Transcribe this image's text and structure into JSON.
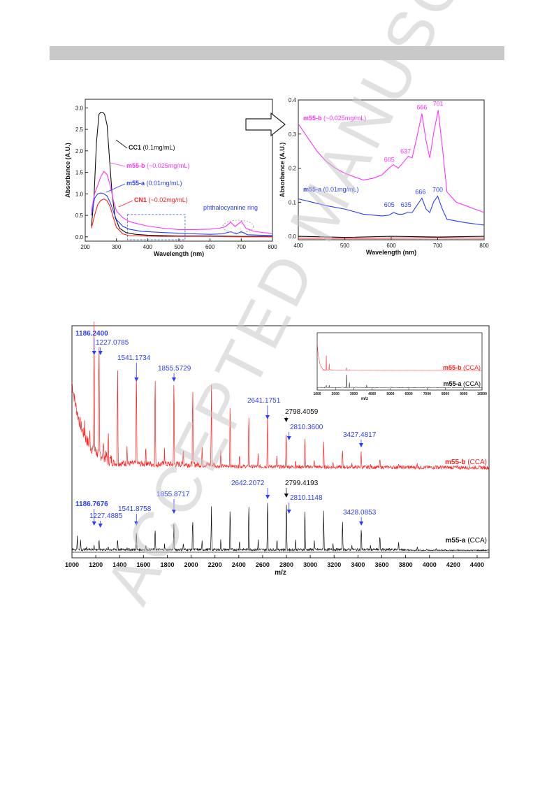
{
  "watermark": {
    "text": "ACCEPTED MANUSCRIPT",
    "color": "#c8c8c8"
  },
  "colors": {
    "magenta": "#ff33ff",
    "blue": "#2b3cff",
    "black": "#111111",
    "red": "#ff2020"
  },
  "chart_data": [
    {
      "type": "line",
      "xlabel": "Wavelength (nm)",
      "ylabel": "Absorbance (A.U.)",
      "xlim": [
        200,
        800
      ],
      "ylim": [
        -0.1,
        3.2
      ],
      "xticks": [
        200,
        300,
        400,
        500,
        600,
        700,
        800
      ],
      "yticks": [
        0.0,
        0.5,
        1.0,
        1.5,
        2.0,
        2.5,
        3.0
      ],
      "series": [
        {
          "name": "CC1",
          "note": "(0.1mg/mL)",
          "color": "#111111",
          "x": [
            220,
            228,
            236,
            244,
            250,
            256,
            262,
            270,
            278,
            286,
            296,
            310,
            330,
            360,
            400,
            500,
            600,
            700,
            800
          ],
          "y": [
            0.25,
            0.9,
            2.2,
            2.85,
            2.9,
            2.9,
            2.85,
            2.6,
            1.8,
            1.0,
            0.45,
            0.2,
            0.1,
            0.06,
            0.04,
            0.02,
            0.02,
            0.01,
            0.01
          ]
        },
        {
          "name": "m55-b",
          "note": "(~0.025mg/mL)",
          "color": "#ff33ff",
          "x": [
            220,
            230,
            240,
            250,
            260,
            270,
            280,
            290,
            300,
            320,
            340,
            360,
            400,
            450,
            500,
            550,
            600,
            630,
            650,
            666,
            680,
            701,
            715,
            740,
            770,
            800
          ],
          "y": [
            0.6,
            1.0,
            1.2,
            1.4,
            1.52,
            1.45,
            1.2,
            0.85,
            0.6,
            0.45,
            0.36,
            0.32,
            0.25,
            0.2,
            0.17,
            0.17,
            0.18,
            0.2,
            0.24,
            0.34,
            0.24,
            0.36,
            0.2,
            0.13,
            0.1,
            0.08
          ]
        },
        {
          "name": "m55-a",
          "note": "(0.01mg/mL)",
          "color": "#2b3cff",
          "x": [
            220,
            230,
            240,
            250,
            260,
            270,
            280,
            290,
            300,
            320,
            340,
            380,
            450,
            550,
            600,
            640,
            666,
            685,
            700,
            720,
            760,
            800
          ],
          "y": [
            0.5,
            0.9,
            1.0,
            1.02,
            1.0,
            0.95,
            0.8,
            0.6,
            0.4,
            0.25,
            0.18,
            0.13,
            0.1,
            0.07,
            0.06,
            0.07,
            0.12,
            0.07,
            0.12,
            0.05,
            0.04,
            0.03
          ]
        },
        {
          "name": "CN1",
          "note": "(~0.02mg/mL)",
          "color": "#ff2020",
          "x": [
            220,
            230,
            240,
            250,
            260,
            270,
            280,
            290,
            300,
            320,
            340,
            380,
            450,
            600,
            700,
            800
          ],
          "y": [
            0.2,
            0.5,
            0.75,
            0.85,
            0.88,
            0.84,
            0.7,
            0.45,
            0.22,
            0.07,
            0.03,
            0.02,
            0.01,
            0.01,
            0.0,
            0.0
          ]
        }
      ],
      "annotations": [
        {
          "text": "phthalocyanine ring"
        }
      ]
    },
    {
      "type": "line",
      "xlabel": "Wavelength (nm)",
      "ylabel": "Absorbance (A.U.)",
      "xlim": [
        400,
        800
      ],
      "ylim": [
        -0.01,
        0.4
      ],
      "xticks": [
        400,
        500,
        600,
        700,
        800
      ],
      "yticks": [
        0.0,
        0.1,
        0.2,
        0.3,
        0.4
      ],
      "series": [
        {
          "name": "m55-b",
          "note": "(~0.025mg/mL)",
          "color": "#ff33ff",
          "x": [
            400,
            420,
            440,
            460,
            480,
            500,
            520,
            540,
            560,
            580,
            595,
            605,
            615,
            625,
            637,
            645,
            655,
            666,
            675,
            683,
            691,
            701,
            711,
            720,
            740,
            760,
            780,
            800
          ],
          "y": [
            0.33,
            0.29,
            0.25,
            0.22,
            0.2,
            0.185,
            0.175,
            0.165,
            0.17,
            0.18,
            0.2,
            0.21,
            0.2,
            0.215,
            0.235,
            0.23,
            0.29,
            0.36,
            0.28,
            0.23,
            0.3,
            0.37,
            0.25,
            0.13,
            0.1,
            0.09,
            0.08,
            0.07
          ]
        },
        {
          "name": "m55-a",
          "note": "(0.01mg/mL)",
          "color": "#2b3cff",
          "x": [
            400,
            430,
            460,
            500,
            540,
            580,
            595,
            605,
            615,
            625,
            635,
            645,
            655,
            666,
            675,
            683,
            691,
            700,
            710,
            720,
            760,
            800
          ],
          "y": [
            0.11,
            0.1,
            0.09,
            0.08,
            0.065,
            0.06,
            0.062,
            0.07,
            0.065,
            0.065,
            0.07,
            0.07,
            0.09,
            0.112,
            0.08,
            0.07,
            0.1,
            0.118,
            0.08,
            0.05,
            0.04,
            0.033
          ]
        },
        {
          "name": "",
          "color": "#111111",
          "x": [
            400,
            500,
            600,
            700,
            800
          ],
          "y": [
            0.0,
            -0.003,
            0.0,
            -0.002,
            0.0
          ]
        },
        {
          "name": "",
          "color": "#ff2020",
          "x": [
            400,
            500,
            600,
            700,
            800
          ],
          "y": [
            -0.005,
            -0.006,
            -0.005,
            -0.004,
            -0.005
          ]
        }
      ],
      "peaks_b": [
        {
          "x": 605,
          "y": 0.21,
          "text": "605"
        },
        {
          "x": 637,
          "y": 0.235,
          "text": "637"
        },
        {
          "x": 666,
          "y": 0.36,
          "text": "666"
        },
        {
          "x": 701,
          "y": 0.37,
          "text": "701"
        }
      ],
      "peaks_a": [
        {
          "x": 605,
          "y": 0.07,
          "text": "605"
        },
        {
          "x": 635,
          "y": 0.07,
          "text": "635"
        },
        {
          "x": 666,
          "y": 0.112,
          "text": "666"
        },
        {
          "x": 700,
          "y": 0.118,
          "text": "700"
        }
      ]
    },
    {
      "type": "line",
      "xlabel": "m/z",
      "xlim": [
        1000,
        4500
      ],
      "xticks": [
        1000,
        1200,
        1400,
        1600,
        1800,
        2000,
        2200,
        2400,
        2600,
        2800,
        3000,
        3200,
        3400,
        3600,
        3800,
        4000,
        4200,
        4400
      ],
      "series": [
        {
          "name": "m55-b",
          "suffix": "(CCA)",
          "color": "#ff2020",
          "peaks_x": [
            1186,
            1227,
            1383,
            1541,
            1698,
            1856,
            2013,
            2170,
            2327,
            2484,
            2641,
            2798,
            2955,
            3112,
            3270,
            3427,
            3584,
            3741,
            3898,
            4055
          ],
          "peaks_h": [
            1.0,
            0.98,
            0.88,
            0.86,
            0.8,
            0.75,
            0.68,
            0.62,
            0.56,
            0.48,
            0.42,
            0.3,
            0.26,
            0.19,
            0.15,
            0.12,
            0.07,
            0.045,
            0.03,
            0.02
          ]
        },
        {
          "name": "m55-a",
          "suffix": "(CCA)",
          "color": "#111111",
          "peaks_x": [
            1045,
            1072,
            1186,
            1227,
            1383,
            1541,
            1698,
            1856,
            2013,
            2170,
            2327,
            2484,
            2642,
            2799,
            2955,
            3112,
            3270,
            3428,
            3584,
            3741,
            3898,
            4055
          ],
          "peaks_h": [
            0.22,
            0.14,
            0.08,
            0.15,
            0.18,
            0.3,
            0.36,
            0.48,
            0.54,
            0.64,
            0.7,
            0.82,
            0.88,
            0.86,
            0.72,
            0.6,
            0.5,
            0.38,
            0.24,
            0.12,
            0.06,
            0.03
          ]
        }
      ],
      "labels_b": [
        {
          "x": 1186,
          "text": "1186.2400",
          "bold": true
        },
        {
          "x": 1227,
          "text": "1227.0785"
        },
        {
          "x": 1541,
          "text": "1541.1734"
        },
        {
          "x": 1856,
          "text": "1855.5729"
        },
        {
          "x": 2641,
          "text": "2641.1751"
        },
        {
          "x": 2798,
          "text": "2798.4059",
          "black": true
        },
        {
          "x": 2810,
          "text": "2810.3600"
        },
        {
          "x": 3427,
          "text": "3427.4817"
        }
      ],
      "labels_a": [
        {
          "x": 1186,
          "text": "1186.7676",
          "bold": true
        },
        {
          "x": 1227,
          "text": "1227.4885"
        },
        {
          "x": 1541,
          "text": "1541.8758"
        },
        {
          "x": 1856,
          "text": "1855.8717"
        },
        {
          "x": 2642,
          "text": "2642.2072"
        },
        {
          "x": 2799,
          "text": "2799.4193",
          "black": true
        },
        {
          "x": 2810,
          "text": "2810.1148"
        },
        {
          "x": 3428,
          "text": "3428.0853"
        }
      ],
      "inset": {
        "xlabel": "m/z",
        "xlim": [
          1000,
          10000
        ],
        "xticks": [
          1000,
          2000,
          3000,
          4000,
          5000,
          6000,
          7000,
          8000,
          9000,
          10000
        ],
        "series": [
          {
            "name": "m55-b",
            "suffix": "(CCA)",
            "color": "#ff2020"
          },
          {
            "name": "m55-a",
            "suffix": "(CCA)",
            "color": "#111111"
          }
        ]
      }
    }
  ]
}
